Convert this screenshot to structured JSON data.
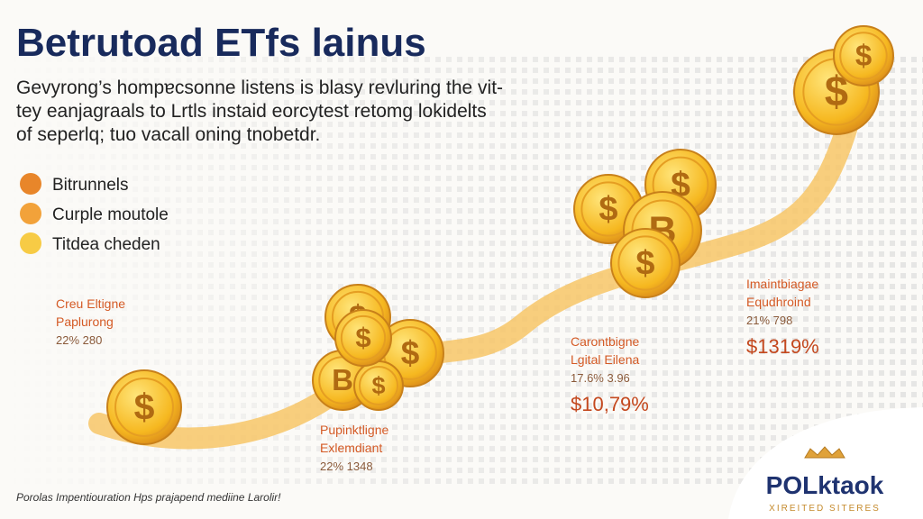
{
  "title": "Betrutoad ETfs lainus",
  "subtitle": [
    "Gevyrong’s hompɐcsonne listens is blasy revluring the vit-",
    "tey eanjagraals to Lrtls instaid eorcytest retomg lokidelts",
    "of seperlq; tuo vacall oning tnobetdr."
  ],
  "legend": [
    {
      "label": "Bitrunnels",
      "color": "#e8862a"
    },
    {
      "label": "Curple moutole",
      "color": "#f2a23a"
    },
    {
      "label": "Titdea cheden",
      "color": "#f7cb45"
    }
  ],
  "annotations": [
    {
      "lines": [
        "Creu Eltigne",
        "Paplurong",
        "22% 280"
      ]
    },
    {
      "lines": [
        "Pupinktligne",
        "Exlemdiant",
        "22% 1348"
      ]
    },
    {
      "lines": [
        "Carontbigne",
        "Lgital Eilena",
        "17.6% 3.96"
      ],
      "value": "$10,79%"
    },
    {
      "lines": [
        "Imaintbiagae",
        "Equdhroind",
        "21% 798"
      ],
      "value": "$1319%"
    }
  ],
  "coins": [
    {
      "symbol": "$"
    },
    {
      "symbol": "$"
    },
    {
      "symbol": "$"
    },
    {
      "symbol": "B"
    },
    {
      "symbol": "$"
    },
    {
      "symbol": "$"
    },
    {
      "symbol": "$"
    },
    {
      "symbol": "$"
    },
    {
      "symbol": "B"
    },
    {
      "symbol": "$"
    },
    {
      "symbol": "$"
    },
    {
      "symbol": "$"
    }
  ],
  "footer": "Porolas Impentiouration Hps prajapend mediine Larolir!",
  "logo": {
    "name": "POLktaok",
    "tagline": "XIREITED SITERES"
  }
}
